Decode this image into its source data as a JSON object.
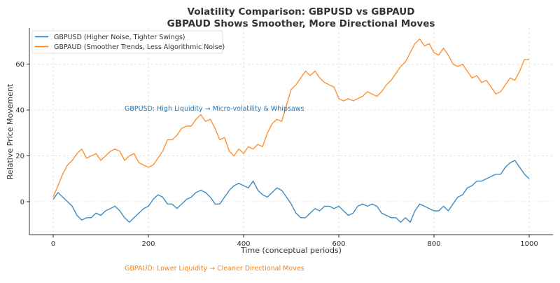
{
  "chart_data": {
    "type": "line",
    "title": "Volatility Comparison: GBPUSD vs GBPAUD",
    "subtitle": "GBPAUD Shows Smoother, More Directional Moves",
    "xlabel": "Time (conceptual periods)",
    "ylabel": "Relative Price Movement",
    "xlim": [
      -50,
      1050
    ],
    "ylim": [
      -14.4,
      75.8
    ],
    "xticks": [
      0,
      200,
      400,
      600,
      800,
      1000
    ],
    "yticks": [
      0,
      20,
      40,
      60
    ],
    "grid": true,
    "legend_position": "top-left",
    "x": [
      0,
      10,
      20,
      30,
      40,
      50,
      60,
      70,
      80,
      90,
      100,
      110,
      120,
      130,
      140,
      150,
      160,
      170,
      180,
      190,
      200,
      210,
      220,
      230,
      240,
      250,
      260,
      270,
      280,
      290,
      300,
      310,
      320,
      330,
      340,
      350,
      360,
      370,
      380,
      390,
      400,
      410,
      420,
      430,
      440,
      450,
      460,
      470,
      480,
      490,
      500,
      510,
      520,
      530,
      540,
      550,
      560,
      570,
      580,
      590,
      600,
      610,
      620,
      630,
      640,
      650,
      660,
      670,
      680,
      690,
      700,
      710,
      720,
      730,
      740,
      750,
      760,
      770,
      780,
      790,
      800,
      810,
      820,
      830,
      840,
      850,
      860,
      870,
      880,
      890,
      900,
      910,
      920,
      930,
      940,
      950,
      960,
      970,
      980,
      990,
      1000
    ],
    "series": [
      {
        "name": "GBPUSD (Higher Noise, Tighter Swings)",
        "color": "#1f77b4",
        "values": [
          1,
          4,
          2,
          0,
          -2,
          -6,
          -8,
          -7,
          -7,
          -5,
          -6,
          -4,
          -3,
          -2,
          -4,
          -7,
          -9,
          -7,
          -5,
          -3,
          -2,
          1,
          3,
          2,
          -1,
          -1,
          -3,
          -1,
          1,
          2,
          4,
          5,
          4,
          2,
          -1,
          -1,
          2,
          5,
          7,
          8,
          7,
          6,
          9,
          5,
          3,
          2,
          4,
          6,
          5,
          2,
          -1,
          -5,
          -7,
          -7,
          -5,
          -3,
          -4,
          -2,
          -2,
          -3,
          -2,
          -4,
          -6,
          -5,
          -2,
          -1,
          -2,
          -1,
          -2,
          -5,
          -6,
          -7,
          -7,
          -9,
          -7,
          -9,
          -4,
          -1,
          -2,
          -3,
          -4,
          -4,
          -2,
          -4,
          -1,
          2,
          3,
          6,
          7,
          9,
          9,
          10,
          11,
          12,
          12,
          15,
          17,
          18,
          15,
          12,
          10
        ]
      },
      {
        "name": "GBPAUD (Smoother Trends, Less Algorithmic Noise)",
        "color": "#ff7f0e",
        "values": [
          2,
          7,
          12,
          16,
          18,
          21,
          23,
          19,
          20,
          21,
          18,
          20,
          22,
          23,
          22,
          18,
          20,
          21,
          17,
          16,
          15,
          16,
          19,
          22,
          27,
          27,
          29,
          32,
          33,
          33,
          36,
          38,
          35,
          36,
          32,
          27,
          28,
          22,
          20,
          23,
          21,
          24,
          23,
          25,
          24,
          30,
          34,
          36,
          35,
          42,
          49,
          51,
          54,
          57,
          55,
          57,
          54,
          52,
          51,
          50,
          45,
          44,
          45,
          44,
          45,
          46,
          48,
          47,
          46,
          48,
          51,
          53,
          56,
          59,
          61,
          65,
          69,
          71,
          68,
          69,
          65,
          64,
          67,
          64,
          60,
          59,
          60,
          57,
          54,
          55,
          52,
          53,
          50,
          47,
          48,
          51,
          54,
          53,
          57,
          62,
          62
        ]
      }
    ],
    "annotations": [
      {
        "text": "GBPUSD: High Liquidity → Micro-volatility & Whipsaws",
        "color": "#1f77b4"
      },
      {
        "text": "GBPAUD: Lower Liquidity → Cleaner Directional Moves",
        "color": "#ff7f0e"
      }
    ]
  }
}
